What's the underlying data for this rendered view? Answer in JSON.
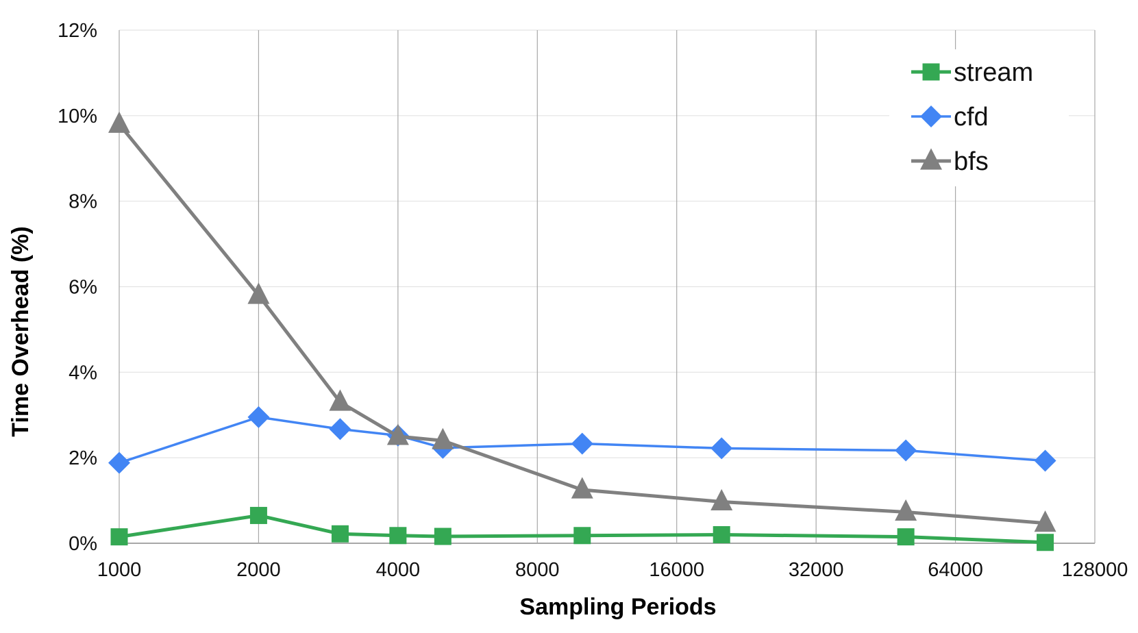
{
  "chart_data": {
    "type": "line",
    "xlabel": "Sampling Periods",
    "ylabel": "Time Overhead (%)",
    "x_scale": "log2",
    "xlim": [
      1000,
      128000
    ],
    "ylim": [
      0,
      12
    ],
    "x_ticks": [
      1000,
      2000,
      4000,
      8000,
      16000,
      32000,
      64000,
      128000
    ],
    "x_tick_labels": [
      "1000",
      "2000",
      "4000",
      "8000",
      "16000",
      "32000",
      "64000",
      "128000"
    ],
    "y_ticks": [
      0,
      2,
      4,
      6,
      8,
      10,
      12
    ],
    "y_tick_labels": [
      "0%",
      "2%",
      "4%",
      "6%",
      "8%",
      "10%",
      "12%"
    ],
    "grid": true,
    "legend_position": "top-right",
    "x": [
      1000,
      2000,
      3000,
      4000,
      5000,
      10000,
      20000,
      50000,
      100000
    ],
    "series": [
      {
        "name": "stream",
        "marker": "square",
        "color": "#34A853",
        "values": [
          0.15,
          0.65,
          0.22,
          0.18,
          0.16,
          0.18,
          0.2,
          0.15,
          0.02
        ]
      },
      {
        "name": "cfd",
        "marker": "diamond",
        "color": "#4285F4",
        "values": [
          1.88,
          2.95,
          2.67,
          2.52,
          2.23,
          2.33,
          2.22,
          2.17,
          1.93
        ]
      },
      {
        "name": "bfs",
        "marker": "triangle",
        "color": "#808080",
        "values": [
          9.8,
          5.8,
          3.3,
          2.5,
          2.4,
          1.25,
          0.97,
          0.73,
          0.47
        ]
      }
    ]
  }
}
